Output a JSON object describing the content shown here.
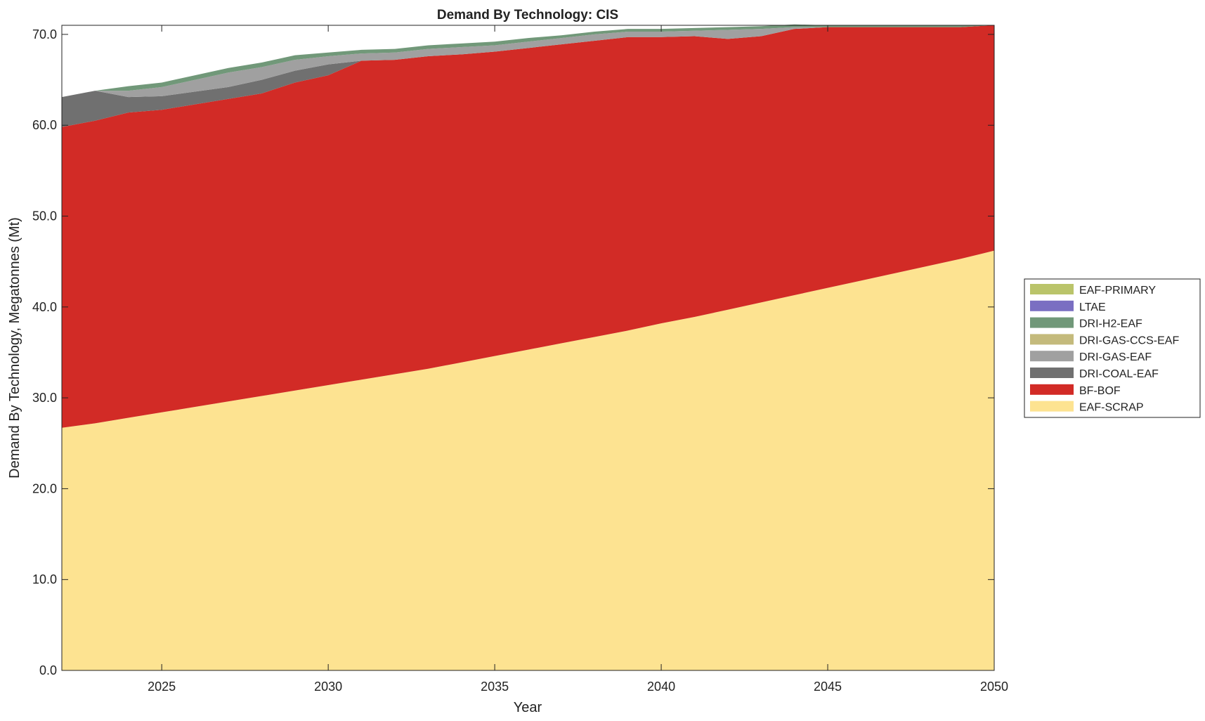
{
  "chart_data": {
    "type": "area",
    "stacked": true,
    "title": "Demand By Technology: CIS",
    "xlabel": "Year",
    "ylabel": "Demand By Technology, Megatonnes (Mt)",
    "xlim": [
      2022,
      2050
    ],
    "ylim": [
      0,
      71
    ],
    "xticks": [
      2025,
      2030,
      2035,
      2040,
      2045,
      2050
    ],
    "yticks": [
      0,
      10,
      20,
      30,
      40,
      50,
      60,
      70
    ],
    "ytick_format": "one-decimal",
    "grid": false,
    "legend_position": "right",
    "x": [
      2022,
      2023,
      2024,
      2025,
      2026,
      2027,
      2028,
      2029,
      2030,
      2031,
      2032,
      2033,
      2034,
      2035,
      2036,
      2037,
      2038,
      2039,
      2040,
      2041,
      2042,
      2043,
      2044,
      2045,
      2046,
      2047,
      2048,
      2049,
      2050
    ],
    "series": [
      {
        "name": "EAF-SCRAP",
        "color": "#FDE391",
        "values": [
          26.7,
          27.2,
          27.8,
          28.4,
          29.0,
          29.6,
          30.2,
          30.8,
          31.4,
          32.0,
          32.6,
          33.2,
          33.9,
          34.6,
          35.3,
          36.0,
          36.7,
          37.4,
          38.2,
          38.9,
          39.7,
          40.5,
          41.3,
          42.1,
          42.9,
          43.7,
          44.5,
          45.3,
          46.2
        ]
      },
      {
        "name": "BF-BOF",
        "color": "#D22B26",
        "values": [
          33.1,
          33.3,
          33.6,
          33.3,
          33.3,
          33.3,
          33.3,
          33.9,
          34.1,
          35.1,
          34.6,
          34.4,
          33.9,
          33.5,
          33.2,
          32.9,
          32.6,
          32.3,
          31.5,
          30.9,
          29.8,
          29.3,
          29.3,
          28.7,
          27.9,
          27.1,
          26.3,
          25.5,
          24.8
        ]
      },
      {
        "name": "DRI-COAL-EAF",
        "color": "#707070",
        "values": [
          3.3,
          3.3,
          1.7,
          1.5,
          1.4,
          1.3,
          1.5,
          1.3,
          1.2,
          0,
          0,
          0,
          0,
          0,
          0,
          0,
          0,
          0,
          0,
          0,
          0,
          0,
          0,
          0,
          0,
          0,
          0,
          0,
          0
        ]
      },
      {
        "name": "DRI-GAS-EAF",
        "color": "#A0A0A0",
        "values": [
          0,
          0,
          0.7,
          1.0,
          1.3,
          1.6,
          1.4,
          1.2,
          0.9,
          0.8,
          0.8,
          0.8,
          0.8,
          0.7,
          0.7,
          0.7,
          0.7,
          0.6,
          0.6,
          0.6,
          1.0,
          0.8,
          0.2,
          0,
          0,
          0,
          0,
          0,
          0
        ]
      },
      {
        "name": "DRI-GAS-CCS-EAF",
        "color": "#C4BA7C",
        "values": [
          0,
          0,
          0,
          0,
          0,
          0,
          0,
          0,
          0,
          0,
          0,
          0,
          0,
          0,
          0,
          0,
          0,
          0,
          0,
          0,
          0,
          0,
          0,
          0,
          0,
          0,
          0,
          0,
          0
        ]
      },
      {
        "name": "DRI-H2-EAF",
        "color": "#719879",
        "values": [
          0,
          0,
          0.5,
          0.5,
          0.5,
          0.5,
          0.5,
          0.5,
          0.4,
          0.4,
          0.4,
          0.4,
          0.4,
          0.4,
          0.4,
          0.3,
          0.3,
          0.3,
          0.3,
          0.3,
          0.3,
          0.3,
          0.3,
          0.2,
          0.2,
          0.2,
          0.2,
          0.2,
          0
        ]
      },
      {
        "name": "LTAE",
        "color": "#7A6FC2",
        "values": [
          0,
          0,
          0,
          0,
          0,
          0,
          0,
          0,
          0,
          0,
          0,
          0,
          0,
          0,
          0,
          0,
          0,
          0,
          0,
          0,
          0,
          0,
          0,
          0,
          0,
          0,
          0,
          0,
          0
        ]
      },
      {
        "name": "EAF-PRIMARY",
        "color": "#BAC46A",
        "values": [
          0,
          0,
          0,
          0,
          0,
          0,
          0,
          0,
          0,
          0,
          0,
          0,
          0,
          0,
          0,
          0,
          0,
          0,
          0,
          0,
          0,
          0,
          0,
          0,
          0,
          0,
          0,
          0,
          0
        ]
      }
    ]
  }
}
